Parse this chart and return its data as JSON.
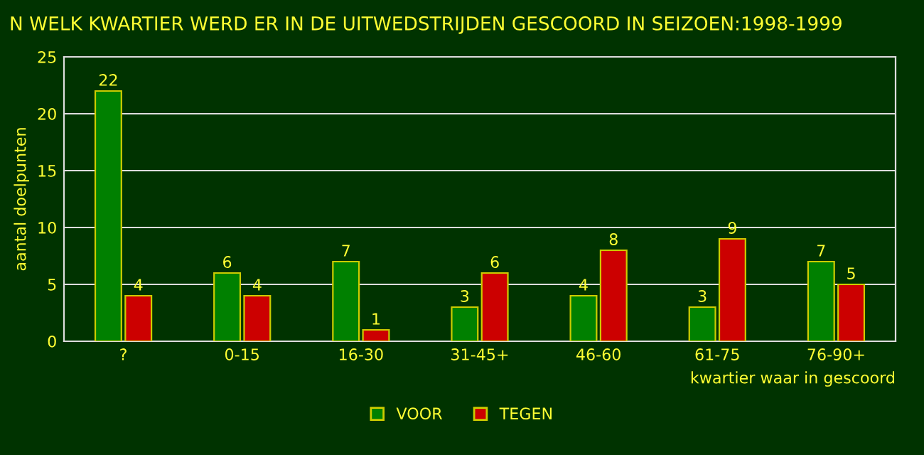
{
  "chart_data": {
    "type": "bar",
    "title": "N WELK KWARTIER WERD ER IN DE UITWEDSTRIJDEN GESCOORD IN SEIZOEN:1998-1999",
    "ylabel": "aantal doelpunten",
    "xlabel": "kwartier waar in gescoord",
    "categories": [
      "?",
      "0-15",
      "16-30",
      "31-45+",
      "46-60",
      "61-75",
      "76-90+"
    ],
    "series": [
      {
        "name": "VOOR",
        "color": "#008000",
        "values": [
          22,
          6,
          7,
          3,
          4,
          3,
          7
        ]
      },
      {
        "name": "TEGEN",
        "color": "#cc0000",
        "values": [
          4,
          4,
          1,
          6,
          8,
          9,
          5
        ]
      }
    ],
    "ylim": [
      0,
      25
    ],
    "yticks": [
      0,
      5,
      10,
      15,
      20,
      25
    ],
    "grid": "y",
    "legend": "bottom",
    "data_labels": true
  }
}
